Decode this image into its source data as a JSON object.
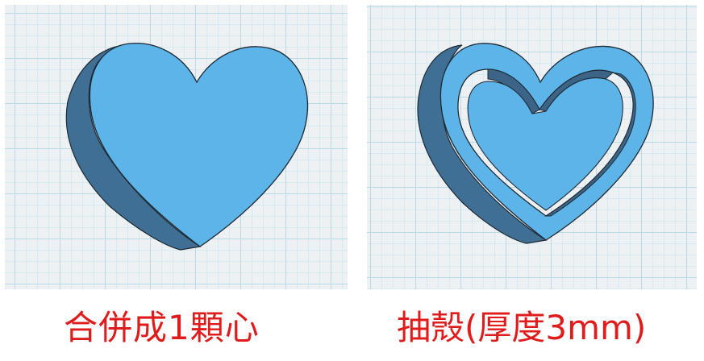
{
  "captions": {
    "left": "合併成1顆心",
    "right": "抽殼(厚度3mm)"
  },
  "colors": {
    "heart_face": "#5db4e8",
    "heart_side": "#3f6f95",
    "heart_inner_wall": "#3c6487",
    "outline": "#1f2a33",
    "grid_major": "#b9dbe8",
    "grid_minor": "#d6eaf2",
    "caption": "#e01b1b"
  },
  "objects": {
    "left": "solid-heart",
    "right": "shelled-heart"
  }
}
